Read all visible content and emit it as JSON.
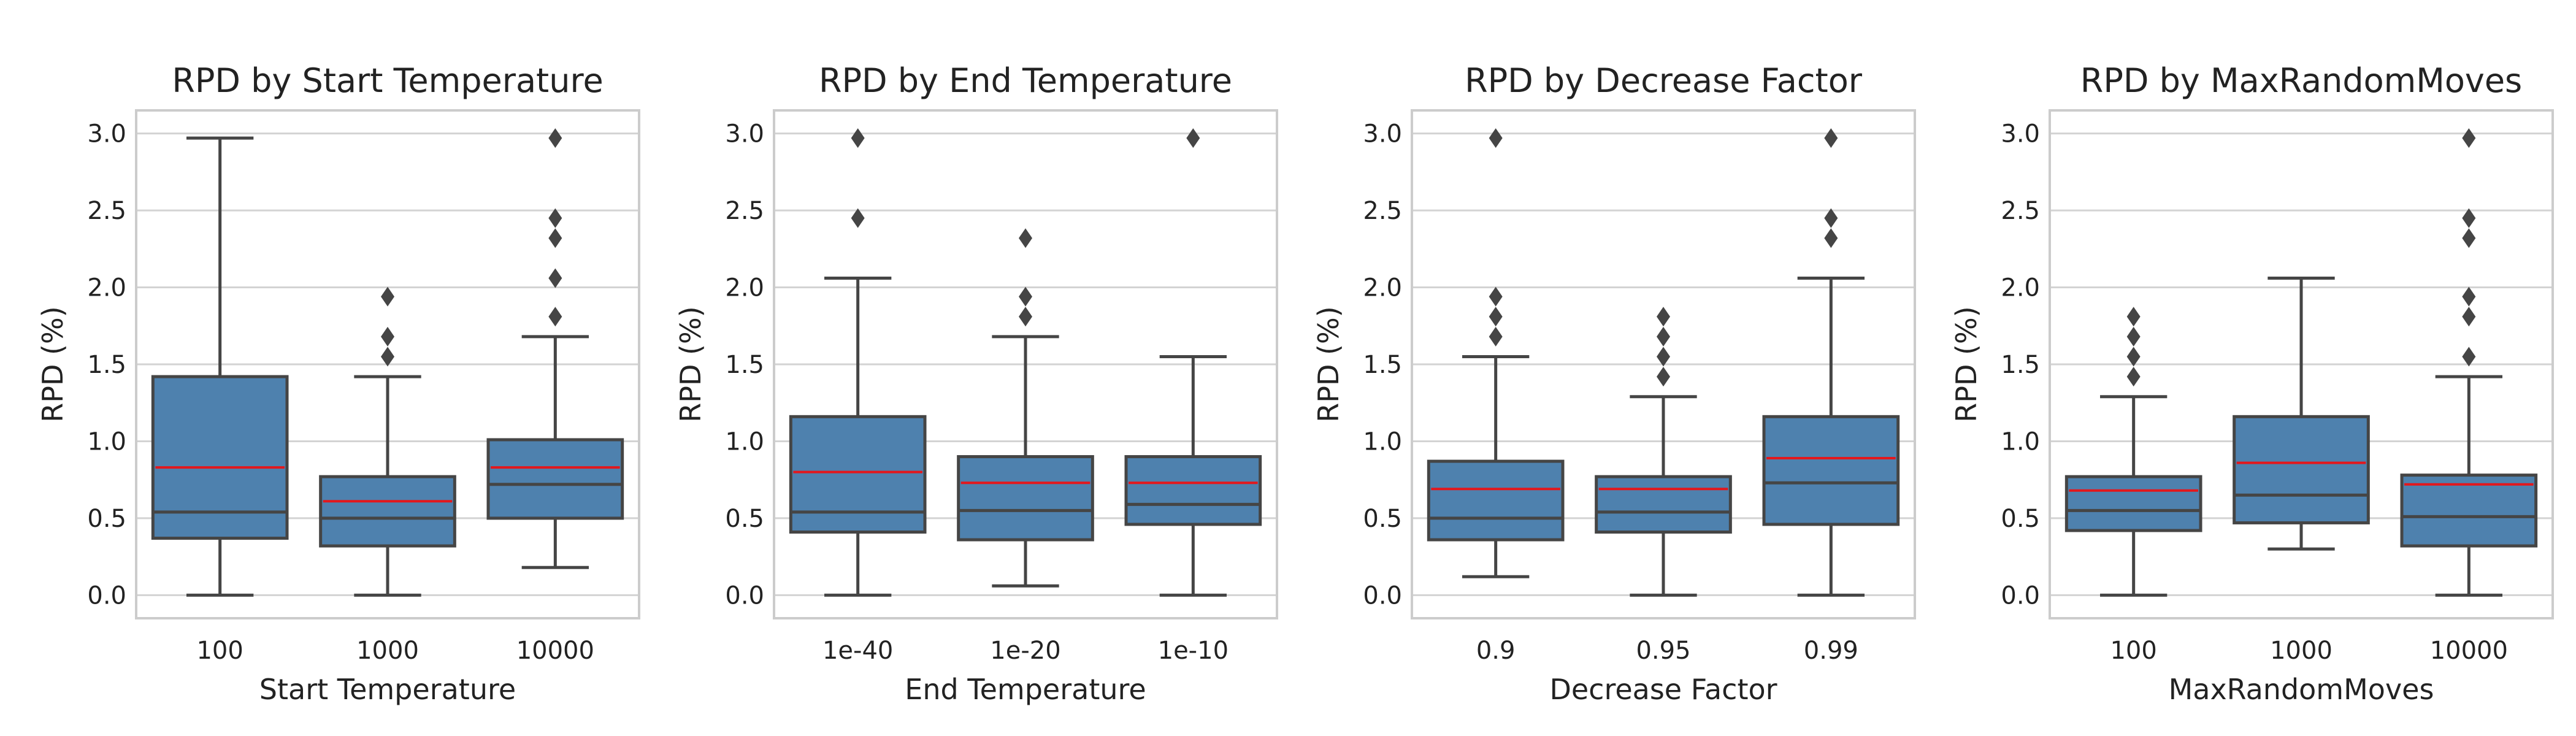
{
  "figure": {
    "colors": {
      "box_fill": "#4e81ae",
      "box_edge": "#454545",
      "median": "#454545",
      "mean": "#e3171c",
      "grid": "#d3d3d3",
      "frame": "#cccccc",
      "background": "#ffffff"
    }
  },
  "chart_data": [
    {
      "type": "box",
      "title": "RPD by Start Temperature",
      "xlabel": "Start Temperature",
      "ylabel": "RPD (%)",
      "ylim": [
        -0.15,
        3.15
      ],
      "yticks": [
        "0.0",
        "0.5",
        "1.0",
        "1.5",
        "2.0",
        "2.5",
        "3.0"
      ],
      "grid": "horizontal",
      "categories": [
        "100",
        "1000",
        "10000"
      ],
      "boxes": [
        {
          "category": "100",
          "whisker_low": 0.0,
          "q1": 0.37,
          "median": 0.54,
          "q3": 1.42,
          "whisker_high": 2.97,
          "mean": 0.83,
          "outliers": []
        },
        {
          "category": "1000",
          "whisker_low": 0.0,
          "q1": 0.32,
          "median": 0.5,
          "q3": 0.77,
          "whisker_high": 1.42,
          "mean": 0.61,
          "outliers": [
            1.55,
            1.68,
            1.94
          ]
        },
        {
          "category": "10000",
          "whisker_low": 0.18,
          "q1": 0.5,
          "median": 0.72,
          "q3": 1.01,
          "whisker_high": 1.68,
          "mean": 0.83,
          "outliers": [
            1.81,
            2.06,
            2.32,
            2.45,
            2.97
          ]
        }
      ]
    },
    {
      "type": "box",
      "title": "RPD by End Temperature",
      "xlabel": "End Temperature",
      "ylabel": "RPD (%)",
      "ylim": [
        -0.15,
        3.15
      ],
      "yticks": [
        "0.0",
        "0.5",
        "1.0",
        "1.5",
        "2.0",
        "2.5",
        "3.0"
      ],
      "grid": "horizontal",
      "categories": [
        "1e-40",
        "1e-20",
        "1e-10"
      ],
      "boxes": [
        {
          "category": "1e-40",
          "whisker_low": 0.0,
          "q1": 0.41,
          "median": 0.54,
          "q3": 1.16,
          "whisker_high": 2.06,
          "mean": 0.8,
          "outliers": [
            2.45,
            2.97
          ]
        },
        {
          "category": "1e-20",
          "whisker_low": 0.06,
          "q1": 0.36,
          "median": 0.55,
          "q3": 0.9,
          "whisker_high": 1.68,
          "mean": 0.73,
          "outliers": [
            1.81,
            1.94,
            2.32
          ]
        },
        {
          "category": "1e-10",
          "whisker_low": 0.0,
          "q1": 0.46,
          "median": 0.59,
          "q3": 0.9,
          "whisker_high": 1.55,
          "mean": 0.73,
          "outliers": [
            2.97
          ]
        }
      ]
    },
    {
      "type": "box",
      "title": "RPD by Decrease Factor",
      "xlabel": "Decrease Factor",
      "ylabel": "RPD (%)",
      "ylim": [
        -0.15,
        3.15
      ],
      "yticks": [
        "0.0",
        "0.5",
        "1.0",
        "1.5",
        "2.0",
        "2.5",
        "3.0"
      ],
      "grid": "horizontal",
      "categories": [
        "0.9",
        "0.95",
        "0.99"
      ],
      "boxes": [
        {
          "category": "0.9",
          "whisker_low": 0.12,
          "q1": 0.36,
          "median": 0.5,
          "q3": 0.87,
          "whisker_high": 1.55,
          "mean": 0.69,
          "outliers": [
            1.68,
            1.81,
            1.94,
            2.97
          ]
        },
        {
          "category": "0.95",
          "whisker_low": 0.0,
          "q1": 0.41,
          "median": 0.54,
          "q3": 0.77,
          "whisker_high": 1.29,
          "mean": 0.69,
          "outliers": [
            1.42,
            1.55,
            1.68,
            1.81
          ]
        },
        {
          "category": "0.99",
          "whisker_low": 0.0,
          "q1": 0.46,
          "median": 0.73,
          "q3": 1.16,
          "whisker_high": 2.06,
          "mean": 0.89,
          "outliers": [
            2.32,
            2.45,
            2.97
          ]
        }
      ]
    },
    {
      "type": "box",
      "title": "RPD by MaxRandomMoves",
      "xlabel": "MaxRandomMoves",
      "ylabel": "RPD (%)",
      "ylim": [
        -0.15,
        3.15
      ],
      "yticks": [
        "0.0",
        "0.5",
        "1.0",
        "1.5",
        "2.0",
        "2.5",
        "3.0"
      ],
      "grid": "horizontal",
      "categories": [
        "100",
        "1000",
        "10000"
      ],
      "boxes": [
        {
          "category": "100",
          "whisker_low": 0.0,
          "q1": 0.42,
          "median": 0.55,
          "q3": 0.77,
          "whisker_high": 1.29,
          "mean": 0.68,
          "outliers": [
            1.42,
            1.55,
            1.68,
            1.81
          ]
        },
        {
          "category": "1000",
          "whisker_low": 0.3,
          "q1": 0.47,
          "median": 0.65,
          "q3": 1.16,
          "whisker_high": 2.06,
          "mean": 0.86,
          "outliers": []
        },
        {
          "category": "10000",
          "whisker_low": 0.0,
          "q1": 0.32,
          "median": 0.51,
          "q3": 0.78,
          "whisker_high": 1.42,
          "mean": 0.72,
          "outliers": [
            1.55,
            1.81,
            1.94,
            2.32,
            2.45,
            2.97
          ]
        }
      ]
    }
  ]
}
